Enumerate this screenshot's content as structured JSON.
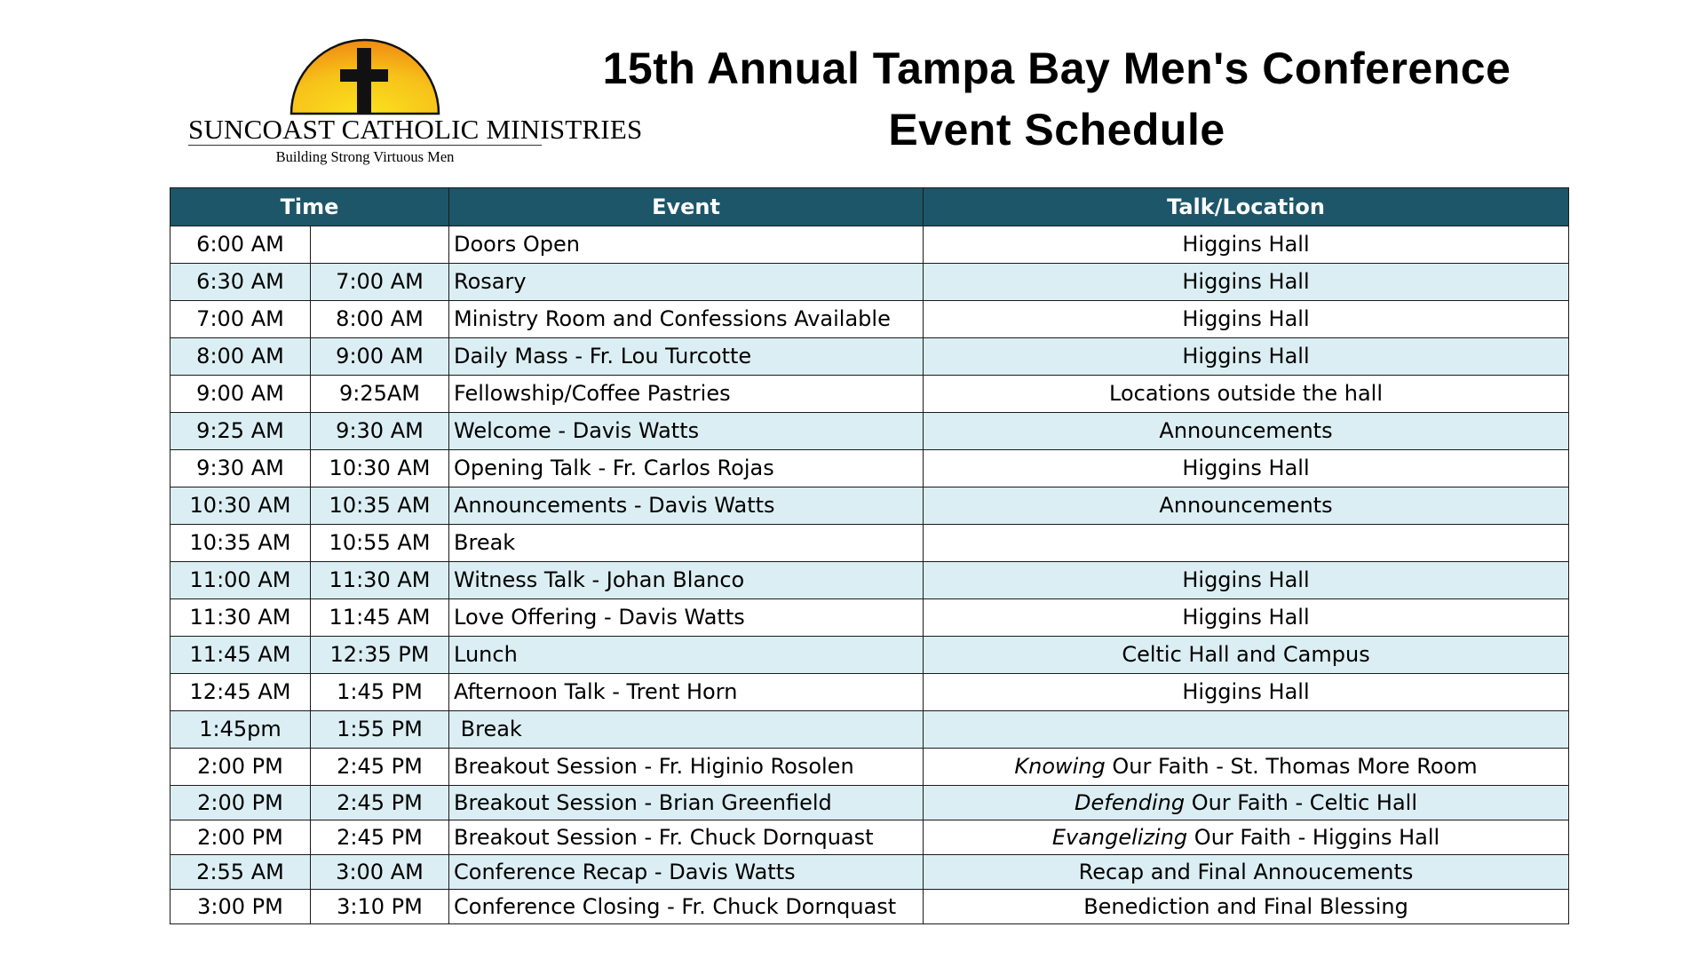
{
  "logo": {
    "name": "SUNCOAST CATHOLIC MINISTRIES",
    "tagline": "Building Strong Virtuous Men",
    "colors": {
      "sun_top": "#f4a417",
      "sun_bottom": "#f7d81c",
      "cross": "#111111"
    },
    "icon": "sun-cross-icon"
  },
  "title": {
    "line1": "15th Annual Tampa Bay Men's Conference",
    "line2": "Event Schedule"
  },
  "table": {
    "header_color": "#1d5668",
    "alt_row_color": "#dbeef3",
    "headers": {
      "time": "Time",
      "event": "Event",
      "location": "Talk/Location"
    },
    "rows": [
      {
        "start": "6:00 AM",
        "end": "",
        "event": "Doors Open",
        "location": "Higgins Hall"
      },
      {
        "start": "6:30 AM",
        "end": "7:00 AM",
        "event": "Rosary",
        "location": "Higgins Hall"
      },
      {
        "start": "7:00 AM",
        "end": "8:00 AM",
        "event": "Ministry Room and Confessions Available",
        "location": "Higgins Hall"
      },
      {
        "start": "8:00 AM",
        "end": "9:00 AM",
        "event": "Daily Mass - Fr. Lou Turcotte",
        "location": "Higgins Hall"
      },
      {
        "start": "9:00 AM",
        "end": "9:25AM",
        "event": "Fellowship/Coffee Pastries",
        "location": "Locations outside the hall"
      },
      {
        "start": "9:25 AM",
        "end": "9:30 AM",
        "event": "Welcome - Davis Watts",
        "location": "Announcements"
      },
      {
        "start": "9:30 AM",
        "end": "10:30 AM",
        "event": "Opening Talk - Fr. Carlos Rojas",
        "location": "Higgins Hall"
      },
      {
        "start": "10:30 AM",
        "end": "10:35 AM",
        "event": "Announcements - Davis Watts",
        "location": "Announcements"
      },
      {
        "start": "10:35 AM",
        "end": "10:55 AM",
        "event": "Break",
        "location": ""
      },
      {
        "start": "11:00 AM",
        "end": "11:30 AM",
        "event": "Witness Talk - Johan Blanco",
        "location": "Higgins Hall"
      },
      {
        "start": "11:30 AM",
        "end": "11:45 AM",
        "event": "Love Offering - Davis Watts",
        "location": "Higgins Hall"
      },
      {
        "start": "11:45 AM",
        "end": "12:35 PM",
        "event": "Lunch",
        "location": "Celtic Hall and Campus"
      },
      {
        "start": "12:45 AM",
        "end": "1:45 PM",
        "event": "Afternoon Talk - Trent Horn",
        "location": "Higgins Hall"
      },
      {
        "start": "1:45pm",
        "end": "1:55 PM",
        "event": " Break",
        "location": ""
      },
      {
        "start": "2:00 PM",
        "end": "2:45 PM",
        "event": "Breakout Session - Fr. Higinio Rosolen",
        "location_em": "Knowing",
        "location": " Our Faith - St. Thomas More Room"
      },
      {
        "start": "2:00 PM",
        "end": "2:45 PM",
        "event": "Breakout Session - Brian Greenfield",
        "location_em": "Defending",
        "location": " Our Faith - Celtic Hall"
      },
      {
        "start": "2:00 PM",
        "end": "2:45 PM",
        "event": "Breakout Session - Fr. Chuck Dornquast",
        "location_em": "Evangelizing",
        "location": " Our Faith - Higgins Hall"
      },
      {
        "start": "2:55 AM",
        "end": "3:00 AM",
        "event": "Conference Recap - Davis Watts",
        "location": "Recap and Final Annoucements"
      },
      {
        "start": "3:00 PM",
        "end": "3:10 PM",
        "event": "Conference Closing - Fr. Chuck Dornquast",
        "location": "Benediction and Final Blessing"
      }
    ]
  }
}
